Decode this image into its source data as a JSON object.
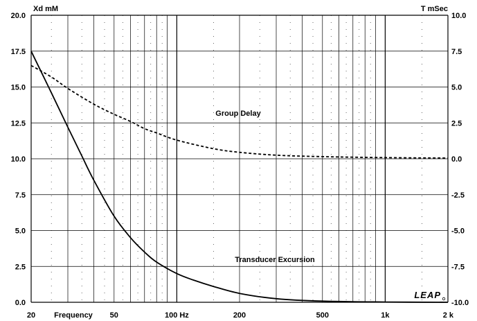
{
  "chart_data": {
    "type": "line",
    "title": "",
    "y_left_label": "Xd mM",
    "y_right_label": "T mSec",
    "x_scale": "log",
    "xlim": [
      20,
      2000
    ],
    "ylim_left": [
      0,
      20
    ],
    "ylim_right": [
      -10,
      10
    ],
    "x_ticks": [
      {
        "value": 20,
        "label": "20"
      },
      {
        "value": 50,
        "label": "50"
      },
      {
        "value": 100,
        "label": "100 Hz"
      },
      {
        "value": 200,
        "label": "200"
      },
      {
        "value": 500,
        "label": "500"
      },
      {
        "value": 1000,
        "label": "1k"
      },
      {
        "value": 2000,
        "label": "2 k"
      }
    ],
    "x_axis_label": "Frequency",
    "y_left_ticks": [
      "0.0",
      "2.5",
      "5.0",
      "7.5",
      "10.0",
      "12.5",
      "15.0",
      "17.5",
      "20.0"
    ],
    "y_right_ticks": [
      "-10.0",
      "-7.5",
      "-5.0",
      "-2.5",
      "0.0",
      "2.5",
      "5.0",
      "7.5",
      "10.0"
    ],
    "grid": true,
    "series": [
      {
        "name": "Transducer Excursion",
        "axis": "left",
        "style": "solid",
        "x": [
          20,
          25,
          30,
          35,
          40,
          50,
          60,
          70,
          80,
          100,
          120,
          150,
          200,
          300,
          500,
          1000,
          2000
        ],
        "y": [
          17.5,
          14.6,
          12.2,
          10.2,
          8.5,
          6.0,
          4.5,
          3.5,
          2.8,
          2.0,
          1.55,
          1.1,
          0.62,
          0.25,
          0.08,
          0.02,
          0.0
        ]
      },
      {
        "name": "Group Delay",
        "axis": "right",
        "style": "dashed",
        "x": [
          20,
          25,
          30,
          40,
          50,
          60,
          70,
          80,
          100,
          150,
          200,
          300,
          500,
          1000,
          2000
        ],
        "y": [
          6.5,
          5.7,
          4.9,
          3.8,
          3.1,
          2.6,
          2.1,
          1.8,
          1.3,
          0.7,
          0.45,
          0.25,
          0.15,
          0.08,
          0.05
        ]
      }
    ],
    "annotations": [
      {
        "text": "Group Delay",
        "x": 200,
        "y_left": 13.0
      },
      {
        "text": "Transducer Excursion",
        "x": 300,
        "y_left": 2.8
      }
    ],
    "logo": "LEAP"
  }
}
